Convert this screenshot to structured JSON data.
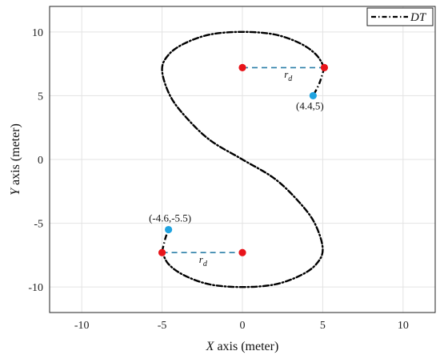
{
  "chart_data": {
    "type": "line",
    "title": "",
    "xlabel_var": "X",
    "xlabel_rest": " axis (meter)",
    "ylabel_var": "Y",
    "ylabel_rest": " axis (meter)",
    "xlim": [
      -12,
      12
    ],
    "ylim": [
      -12,
      12
    ],
    "xticks": [
      -10,
      -5,
      0,
      5,
      10
    ],
    "yticks": [
      -10,
      -5,
      0,
      5,
      10
    ],
    "xtick_labels": [
      "-10",
      "-5",
      "0",
      "5",
      "10"
    ],
    "ytick_labels": [
      "-10",
      "-5",
      "0",
      "5",
      "10"
    ],
    "grid": true,
    "legend_position": "top-right",
    "series": [
      {
        "name": "DT",
        "style": "dash-dot",
        "color": "#000000",
        "points": [
          [
            5.1,
            7.2
          ],
          [
            4.6,
            8.2
          ],
          [
            3.6,
            9.1
          ],
          [
            2.0,
            9.8
          ],
          [
            0.0,
            10.0
          ],
          [
            -2.0,
            9.8
          ],
          [
            -3.6,
            9.1
          ],
          [
            -4.6,
            8.2
          ],
          [
            -5.0,
            7.0
          ],
          [
            -4.5,
            5.0
          ],
          [
            -3.5,
            3.3
          ],
          [
            -2.0,
            1.5
          ],
          [
            0.0,
            0.0
          ],
          [
            2.0,
            -1.5
          ],
          [
            3.5,
            -3.3
          ],
          [
            4.5,
            -5.0
          ],
          [
            5.0,
            -7.0
          ],
          [
            4.6,
            -8.2
          ],
          [
            3.6,
            -9.1
          ],
          [
            2.0,
            -9.8
          ],
          [
            0.0,
            -10.0
          ],
          [
            -2.0,
            -9.8
          ],
          [
            -3.6,
            -9.1
          ],
          [
            -4.6,
            -8.2
          ],
          [
            -5.0,
            -7.2
          ]
        ]
      }
    ],
    "arc_extensions": [
      {
        "points": [
          [
            5.1,
            7.2
          ],
          [
            4.8,
            6.0
          ],
          [
            4.4,
            5.0
          ]
        ]
      },
      {
        "points": [
          [
            -5.0,
            -7.2
          ],
          [
            -4.8,
            -6.2
          ],
          [
            -4.6,
            -5.5
          ]
        ]
      }
    ],
    "red_points": [
      [
        0,
        7.2
      ],
      [
        5.1,
        7.2
      ],
      [
        0,
        -7.3
      ],
      [
        -5.0,
        -7.3
      ]
    ],
    "blue_points": [
      {
        "x": 4.4,
        "y": 5.0,
        "label": "(4.4,5)"
      },
      {
        "x": -4.6,
        "y": -5.5,
        "label": "(-4.6,-5.5)"
      }
    ],
    "radius_lines": [
      {
        "x1": 0,
        "y1": 7.2,
        "x2": 5.1,
        "y2": 7.2,
        "label_main": "r",
        "label_sub": "d",
        "lx": 2.6,
        "ly": 6.4
      },
      {
        "x1": -5.0,
        "y1": -7.3,
        "x2": 0,
        "y2": -7.3,
        "label_main": "r",
        "label_sub": "d",
        "lx": -2.7,
        "ly": -8.1
      }
    ],
    "colors": {
      "curve": "#000000",
      "red_point": "#e8141a",
      "blue_point": "#1fa3e0",
      "radius_line": "#2b7fa8",
      "grid": "#e3e3e3"
    }
  }
}
